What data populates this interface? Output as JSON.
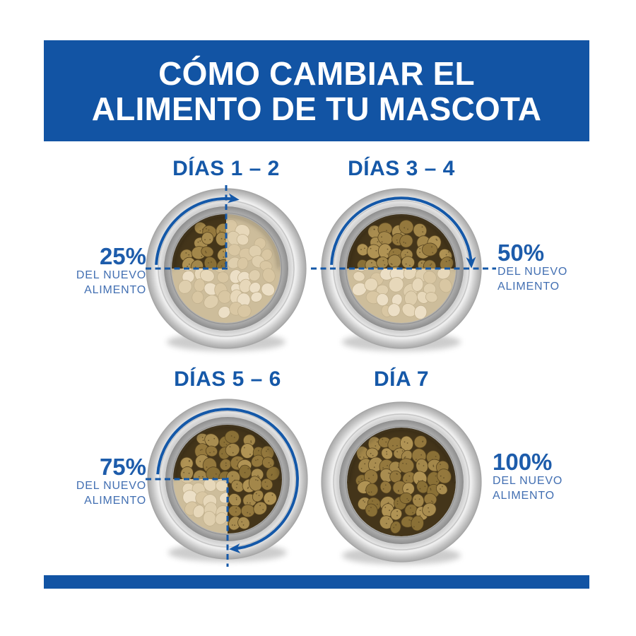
{
  "header": {
    "title_line1": "CÓMO CAMBIAR EL",
    "title_line2": "ALIMENTO DE TU MASCOTA"
  },
  "steps": [
    {
      "day_label": "DÍAS 1 – 2",
      "percent": "25%",
      "caption_line1": "DEL NUEVO",
      "caption_line2": "ALIMENTO",
      "fraction": 0.25,
      "label_side": "left"
    },
    {
      "day_label": "DÍAS 3 – 4",
      "percent": "50%",
      "caption_line1": "DEL NUEVO",
      "caption_line2": "ALIMENTO",
      "fraction": 0.5,
      "label_side": "right"
    },
    {
      "day_label": "DÍAS 5 – 6",
      "percent": "75%",
      "caption_line1": "DEL NUEVO",
      "caption_line2": "ALIMENTO",
      "fraction": 0.75,
      "label_side": "left"
    },
    {
      "day_label": "DÍA 7",
      "percent": "100%",
      "caption_line1": "DEL NUEVO",
      "caption_line2": "ALIMENTO",
      "fraction": 1.0,
      "label_side": "right"
    }
  ],
  "colors": {
    "brand_blue": "#1254A4",
    "label_blue": "#1558A8",
    "percent_blue": "#1D5CAB",
    "caption_blue": "#426FB2",
    "arrow_blue": "#1458A8"
  }
}
